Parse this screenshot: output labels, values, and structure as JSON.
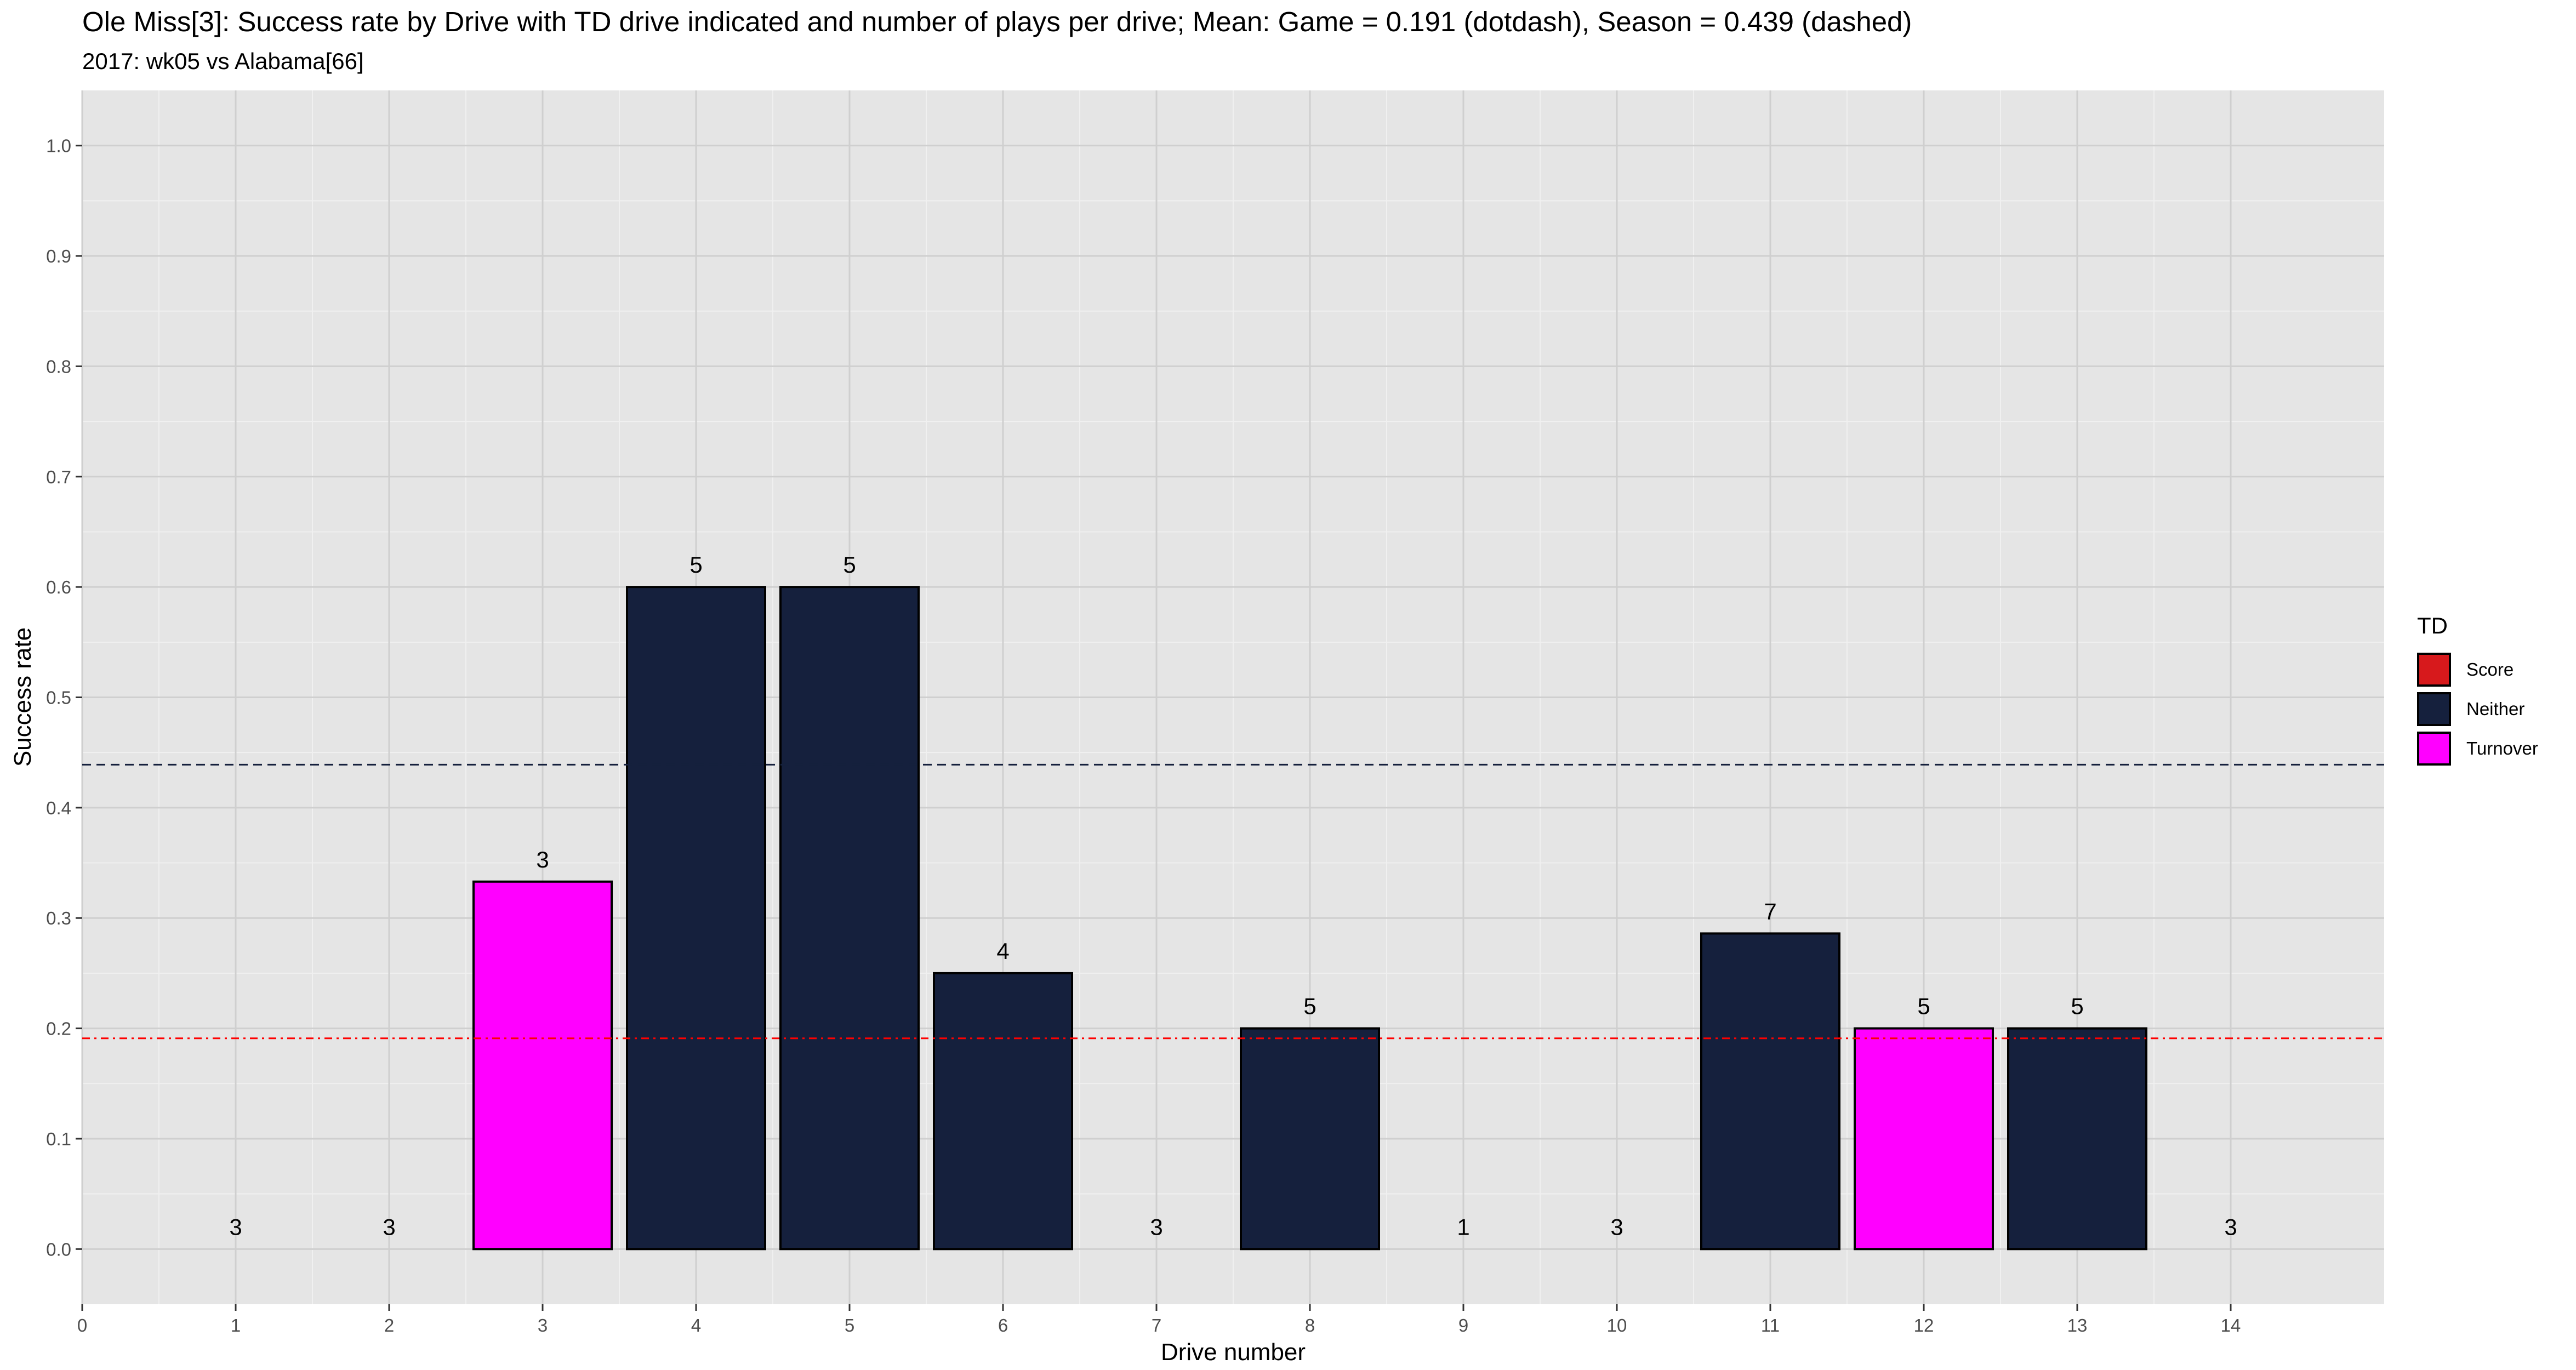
{
  "chart_data": {
    "type": "bar",
    "title": "Ole Miss[3]: Success rate by Drive with TD drive indicated and number of plays per drive; Mean: Game = 0.191 (dotdash), Season = 0.439 (dashed)",
    "subtitle": "2017: wk05 vs Alabama[66]",
    "xlabel": "Drive number",
    "ylabel": "Success rate",
    "xlim": [
      0,
      15
    ],
    "ylim": [
      -0.05,
      1.05
    ],
    "x_ticks": [
      0,
      1,
      2,
      3,
      4,
      5,
      6,
      7,
      8,
      9,
      10,
      11,
      12,
      13,
      14
    ],
    "y_ticks": [
      "0.0",
      "0.1",
      "0.2",
      "0.3",
      "0.4",
      "0.5",
      "0.6",
      "0.7",
      "0.8",
      "0.9",
      "1.0"
    ],
    "grid": true,
    "legend_position": "right",
    "legend_title": "TD",
    "legend": [
      {
        "label": "Score",
        "color": "#d7191c"
      },
      {
        "label": "Neither",
        "color": "#15203d"
      },
      {
        "label": "Turnover",
        "color": "#ff00ff"
      }
    ],
    "drives": [
      {
        "drive": 1,
        "success_rate": 0.0,
        "plays": 3,
        "td": "Neither"
      },
      {
        "drive": 2,
        "success_rate": 0.0,
        "plays": 3,
        "td": "Neither"
      },
      {
        "drive": 3,
        "success_rate": 0.333,
        "plays": 3,
        "td": "Turnover"
      },
      {
        "drive": 4,
        "success_rate": 0.6,
        "plays": 5,
        "td": "Neither"
      },
      {
        "drive": 5,
        "success_rate": 0.6,
        "plays": 5,
        "td": "Neither"
      },
      {
        "drive": 6,
        "success_rate": 0.25,
        "plays": 4,
        "td": "Neither"
      },
      {
        "drive": 7,
        "success_rate": 0.0,
        "plays": 3,
        "td": "Neither"
      },
      {
        "drive": 8,
        "success_rate": 0.2,
        "plays": 5,
        "td": "Neither"
      },
      {
        "drive": 9,
        "success_rate": 0.0,
        "plays": 1,
        "td": "Neither"
      },
      {
        "drive": 10,
        "success_rate": 0.0,
        "plays": 3,
        "td": "Neither"
      },
      {
        "drive": 11,
        "success_rate": 0.286,
        "plays": 7,
        "td": "Neither"
      },
      {
        "drive": 12,
        "success_rate": 0.2,
        "plays": 5,
        "td": "Turnover"
      },
      {
        "drive": 13,
        "success_rate": 0.2,
        "plays": 5,
        "td": "Neither"
      },
      {
        "drive": 14,
        "success_rate": 0.0,
        "plays": 3,
        "td": "Neither"
      }
    ],
    "reference_lines": [
      {
        "name": "Game",
        "value": 0.191,
        "style": "dotdash",
        "color": "#ff0000"
      },
      {
        "name": "Season",
        "value": 0.439,
        "style": "dashed",
        "color": "#15203d"
      }
    ]
  }
}
